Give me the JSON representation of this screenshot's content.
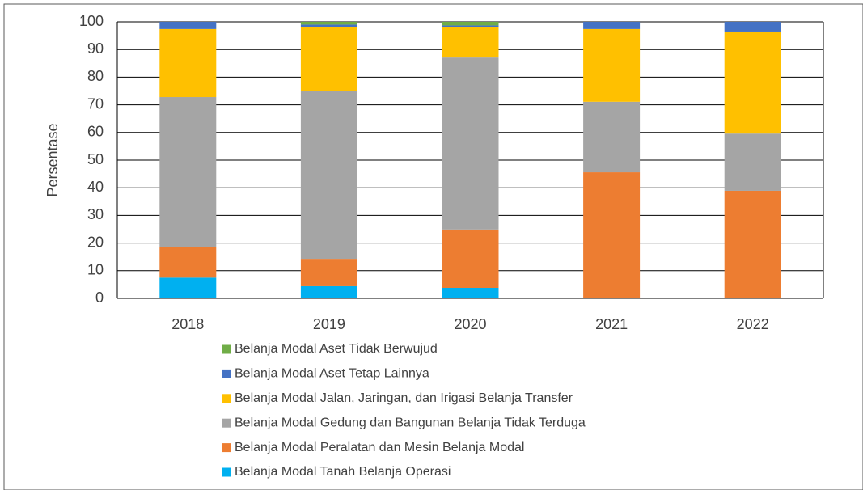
{
  "chart_data": {
    "type": "stacked_bar",
    "y_label": "Persentase",
    "categories": [
      "2018",
      "2019",
      "2020",
      "2021",
      "2022"
    ],
    "series": [
      {
        "name": "Belanja Modal Tanah Belanja Operasi",
        "color": "#00b0f0",
        "values": [
          7.5,
          4.4,
          3.8,
          0,
          0
        ]
      },
      {
        "name": "Belanja Modal Peralatan dan Mesin Belanja Modal",
        "color": "#ed7d31",
        "values": [
          11.2,
          9.9,
          21.1,
          45.6,
          38.9
        ]
      },
      {
        "name": "Belanja Modal Gedung dan Bangunan Belanja Tidak Terduga",
        "color": "#a5a5a5",
        "values": [
          54.1,
          60.8,
          62.2,
          25.5,
          20.7
        ]
      },
      {
        "name": "Belanja Modal Jalan, Jaringan, dan Irigasi Belanja Transfer",
        "color": "#ffc000",
        "values": [
          24.6,
          23.1,
          11.1,
          26.3,
          36.9
        ]
      },
      {
        "name": "Belanja Modal Aset Tetap Lainnya",
        "color": "#4472c4",
        "values": [
          2.6,
          0.8,
          0.5,
          2.6,
          3.5
        ]
      },
      {
        "name": "Belanja Modal Aset Tidak Berwujud",
        "color": "#70ad47",
        "values": [
          0,
          1.0,
          1.3,
          0,
          0
        ]
      }
    ],
    "ylim": [
      0,
      100
    ],
    "yticks": [
      0,
      10,
      20,
      30,
      40,
      50,
      60,
      70,
      80,
      90,
      100
    ],
    "grid": true,
    "legend": "bottom"
  }
}
